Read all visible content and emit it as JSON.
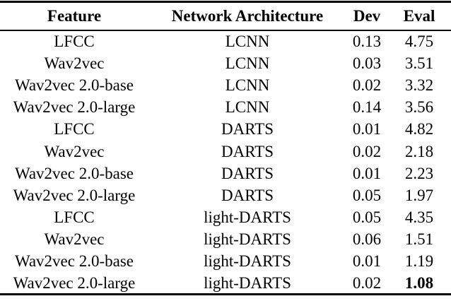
{
  "colors": {
    "background": "#ffffff",
    "text": "#000000",
    "rule": "#000000"
  },
  "table": {
    "columns": [
      "Feature",
      "Network Architecture",
      "Dev",
      "Eval"
    ],
    "column_keys": [
      "feature",
      "network-architecture",
      "dev",
      "eval"
    ],
    "rows": [
      {
        "cells": [
          "LFCC",
          "LCNN",
          "0.13",
          "4.75"
        ],
        "bold": []
      },
      {
        "cells": [
          "Wav2vec",
          "LCNN",
          "0.03",
          "3.51"
        ],
        "bold": []
      },
      {
        "cells": [
          "Wav2vec 2.0-base",
          "LCNN",
          "0.02",
          "3.32"
        ],
        "bold": []
      },
      {
        "cells": [
          "Wav2vec 2.0-large",
          "LCNN",
          "0.14",
          "3.56"
        ],
        "bold": []
      },
      {
        "cells": [
          "LFCC",
          "DARTS",
          "0.01",
          "4.82"
        ],
        "bold": []
      },
      {
        "cells": [
          "Wav2vec",
          "DARTS",
          "0.02",
          "2.18"
        ],
        "bold": []
      },
      {
        "cells": [
          "Wav2vec 2.0-base",
          "DARTS",
          "0.01",
          "2.23"
        ],
        "bold": []
      },
      {
        "cells": [
          "Wav2vec 2.0-large",
          "DARTS",
          "0.05",
          "1.97"
        ],
        "bold": []
      },
      {
        "cells": [
          "LFCC",
          "light-DARTS",
          "0.05",
          "4.35"
        ],
        "bold": []
      },
      {
        "cells": [
          "Wav2vec",
          "light-DARTS",
          "0.06",
          "1.51"
        ],
        "bold": []
      },
      {
        "cells": [
          "Wav2vec 2.0-base",
          "light-DARTS",
          "0.01",
          "1.19"
        ],
        "bold": []
      },
      {
        "cells": [
          "Wav2vec 2.0-large",
          "light-DARTS",
          "0.02",
          "1.08"
        ],
        "bold": [
          3
        ]
      }
    ]
  },
  "chart_data": {
    "type": "table",
    "title": "",
    "columns": [
      "Feature",
      "Network Architecture",
      "Dev",
      "Eval"
    ],
    "rows": [
      [
        "LFCC",
        "LCNN",
        0.13,
        4.75
      ],
      [
        "Wav2vec",
        "LCNN",
        0.03,
        3.51
      ],
      [
        "Wav2vec 2.0-base",
        "LCNN",
        0.02,
        3.32
      ],
      [
        "Wav2vec 2.0-large",
        "LCNN",
        0.14,
        3.56
      ],
      [
        "LFCC",
        "DARTS",
        0.01,
        4.82
      ],
      [
        "Wav2vec",
        "DARTS",
        0.02,
        2.18
      ],
      [
        "Wav2vec 2.0-base",
        "DARTS",
        0.01,
        2.23
      ],
      [
        "Wav2vec 2.0-large",
        "DARTS",
        0.05,
        1.97
      ],
      [
        "LFCC",
        "light-DARTS",
        0.05,
        4.35
      ],
      [
        "Wav2vec",
        "light-DARTS",
        0.06,
        1.51
      ],
      [
        "Wav2vec 2.0-base",
        "light-DARTS",
        0.01,
        1.19
      ],
      [
        "Wav2vec 2.0-large",
        "light-DARTS",
        0.02,
        1.08
      ]
    ],
    "notes": "Best Eval value 1.08 is shown in bold"
  }
}
